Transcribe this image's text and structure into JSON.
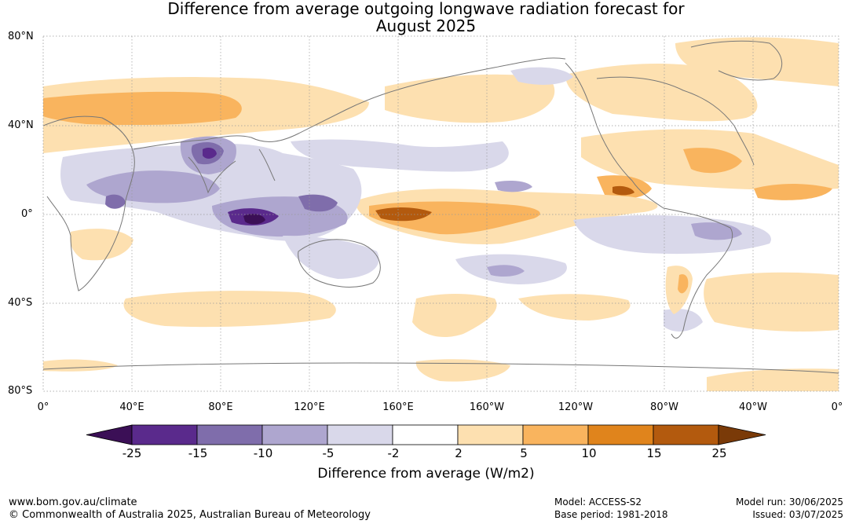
{
  "title": {
    "line1": "Difference from average outgoing longwave radiation forecast for",
    "line2": "August 2025"
  },
  "map": {
    "lat_labels": [
      "80°N",
      "40°N",
      "0°",
      "40°S",
      "80°S"
    ],
    "lon_labels": [
      "0°",
      "40°E",
      "80°E",
      "120°E",
      "160°E",
      "160°W",
      "120°W",
      "80°W",
      "40°W",
      "0°"
    ]
  },
  "colorbar": {
    "label": "Difference from average (W/m2)",
    "ticks": [
      "-25",
      "-15",
      "-10",
      "-5",
      "-2",
      "2",
      "5",
      "10",
      "15",
      "25"
    ],
    "colors": [
      "#3b0f56",
      "#5a2a8c",
      "#7f6dab",
      "#aea6cf",
      "#d9d8ea",
      "#ffffff",
      "#fde0b0",
      "#f9b45e",
      "#e0841c",
      "#b35a0e",
      "#7a3a08"
    ]
  },
  "footer": {
    "website": "www.bom.gov.au/climate",
    "copyright": "© Commonwealth of Australia 2025, Australian Bureau of Meteorology",
    "model": "Model: ACCESS-S2",
    "base_period": "Base period: 1981-2018",
    "model_run": "Model run: 30/06/2025",
    "issued": "Issued: 03/07/2025"
  }
}
